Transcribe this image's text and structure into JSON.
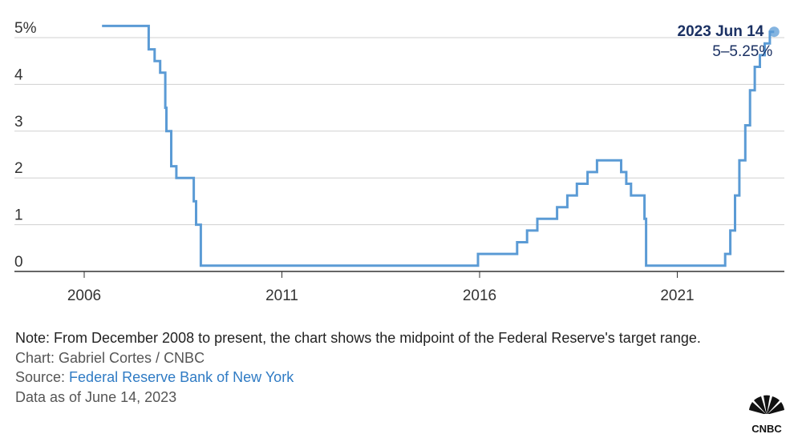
{
  "chart_data": {
    "type": "line",
    "step": true,
    "title": "",
    "xlabel": "",
    "ylabel": "",
    "x_ticks": [
      "2006",
      "2011",
      "2016",
      "2021"
    ],
    "y_ticks": [
      "5%",
      "4",
      "3",
      "2",
      "1",
      "0"
    ],
    "xlim": [
      2004.2,
      2023.8
    ],
    "ylim": [
      0,
      5.3
    ],
    "grid": true,
    "series": [
      {
        "color": "#5b9bd5",
        "points": [
          [
            2006.45,
            5.25
          ],
          [
            2007.63,
            5.25
          ],
          [
            2007.63,
            4.75
          ],
          [
            2007.78,
            4.75
          ],
          [
            2007.78,
            4.5
          ],
          [
            2007.92,
            4.5
          ],
          [
            2007.92,
            4.25
          ],
          [
            2008.05,
            4.25
          ],
          [
            2008.05,
            3.5
          ],
          [
            2008.08,
            3.5
          ],
          [
            2008.08,
            3.0
          ],
          [
            2008.2,
            3.0
          ],
          [
            2008.2,
            2.25
          ],
          [
            2008.33,
            2.25
          ],
          [
            2008.33,
            2.0
          ],
          [
            2008.77,
            2.0
          ],
          [
            2008.77,
            1.5
          ],
          [
            2008.83,
            1.5
          ],
          [
            2008.83,
            1.0
          ],
          [
            2008.95,
            1.0
          ],
          [
            2008.95,
            0.125
          ],
          [
            2015.96,
            0.125
          ],
          [
            2015.96,
            0.375
          ],
          [
            2016.95,
            0.375
          ],
          [
            2016.95,
            0.625
          ],
          [
            2017.2,
            0.625
          ],
          [
            2017.2,
            0.875
          ],
          [
            2017.46,
            0.875
          ],
          [
            2017.46,
            1.125
          ],
          [
            2017.96,
            1.125
          ],
          [
            2017.96,
            1.375
          ],
          [
            2018.22,
            1.375
          ],
          [
            2018.22,
            1.625
          ],
          [
            2018.46,
            1.625
          ],
          [
            2018.46,
            1.875
          ],
          [
            2018.73,
            1.875
          ],
          [
            2018.73,
            2.125
          ],
          [
            2018.97,
            2.125
          ],
          [
            2018.97,
            2.375
          ],
          [
            2019.58,
            2.375
          ],
          [
            2019.58,
            2.125
          ],
          [
            2019.71,
            2.125
          ],
          [
            2019.71,
            1.875
          ],
          [
            2019.83,
            1.875
          ],
          [
            2019.83,
            1.625
          ],
          [
            2020.17,
            1.625
          ],
          [
            2020.17,
            1.125
          ],
          [
            2020.21,
            1.125
          ],
          [
            2020.21,
            0.125
          ],
          [
            2022.21,
            0.125
          ],
          [
            2022.21,
            0.375
          ],
          [
            2022.34,
            0.375
          ],
          [
            2022.34,
            0.875
          ],
          [
            2022.46,
            0.875
          ],
          [
            2022.46,
            1.625
          ],
          [
            2022.57,
            1.625
          ],
          [
            2022.57,
            2.375
          ],
          [
            2022.72,
            2.375
          ],
          [
            2022.72,
            3.125
          ],
          [
            2022.84,
            3.125
          ],
          [
            2022.84,
            3.875
          ],
          [
            2022.96,
            3.875
          ],
          [
            2022.96,
            4.375
          ],
          [
            2023.09,
            4.375
          ],
          [
            2023.09,
            4.625
          ],
          [
            2023.21,
            4.625
          ],
          [
            2023.21,
            4.875
          ],
          [
            2023.34,
            4.875
          ],
          [
            2023.34,
            5.125
          ],
          [
            2023.45,
            5.125
          ]
        ]
      }
    ],
    "annotation": {
      "x": 2023.45,
      "y": 5.125,
      "date": "2023 Jun 14",
      "value": "5–5.25%"
    }
  },
  "footer": {
    "note": "Note: From December 2008 to present, the chart shows the midpoint of the Federal Reserve's target range.",
    "credit": "Chart: Gabriel Cortes / CNBC",
    "source_prefix": "Source: ",
    "source_link": "Federal Reserve Bank of New York",
    "data_as_of": "Data as of June 14, 2023"
  },
  "logo": {
    "text": "CNBC"
  }
}
